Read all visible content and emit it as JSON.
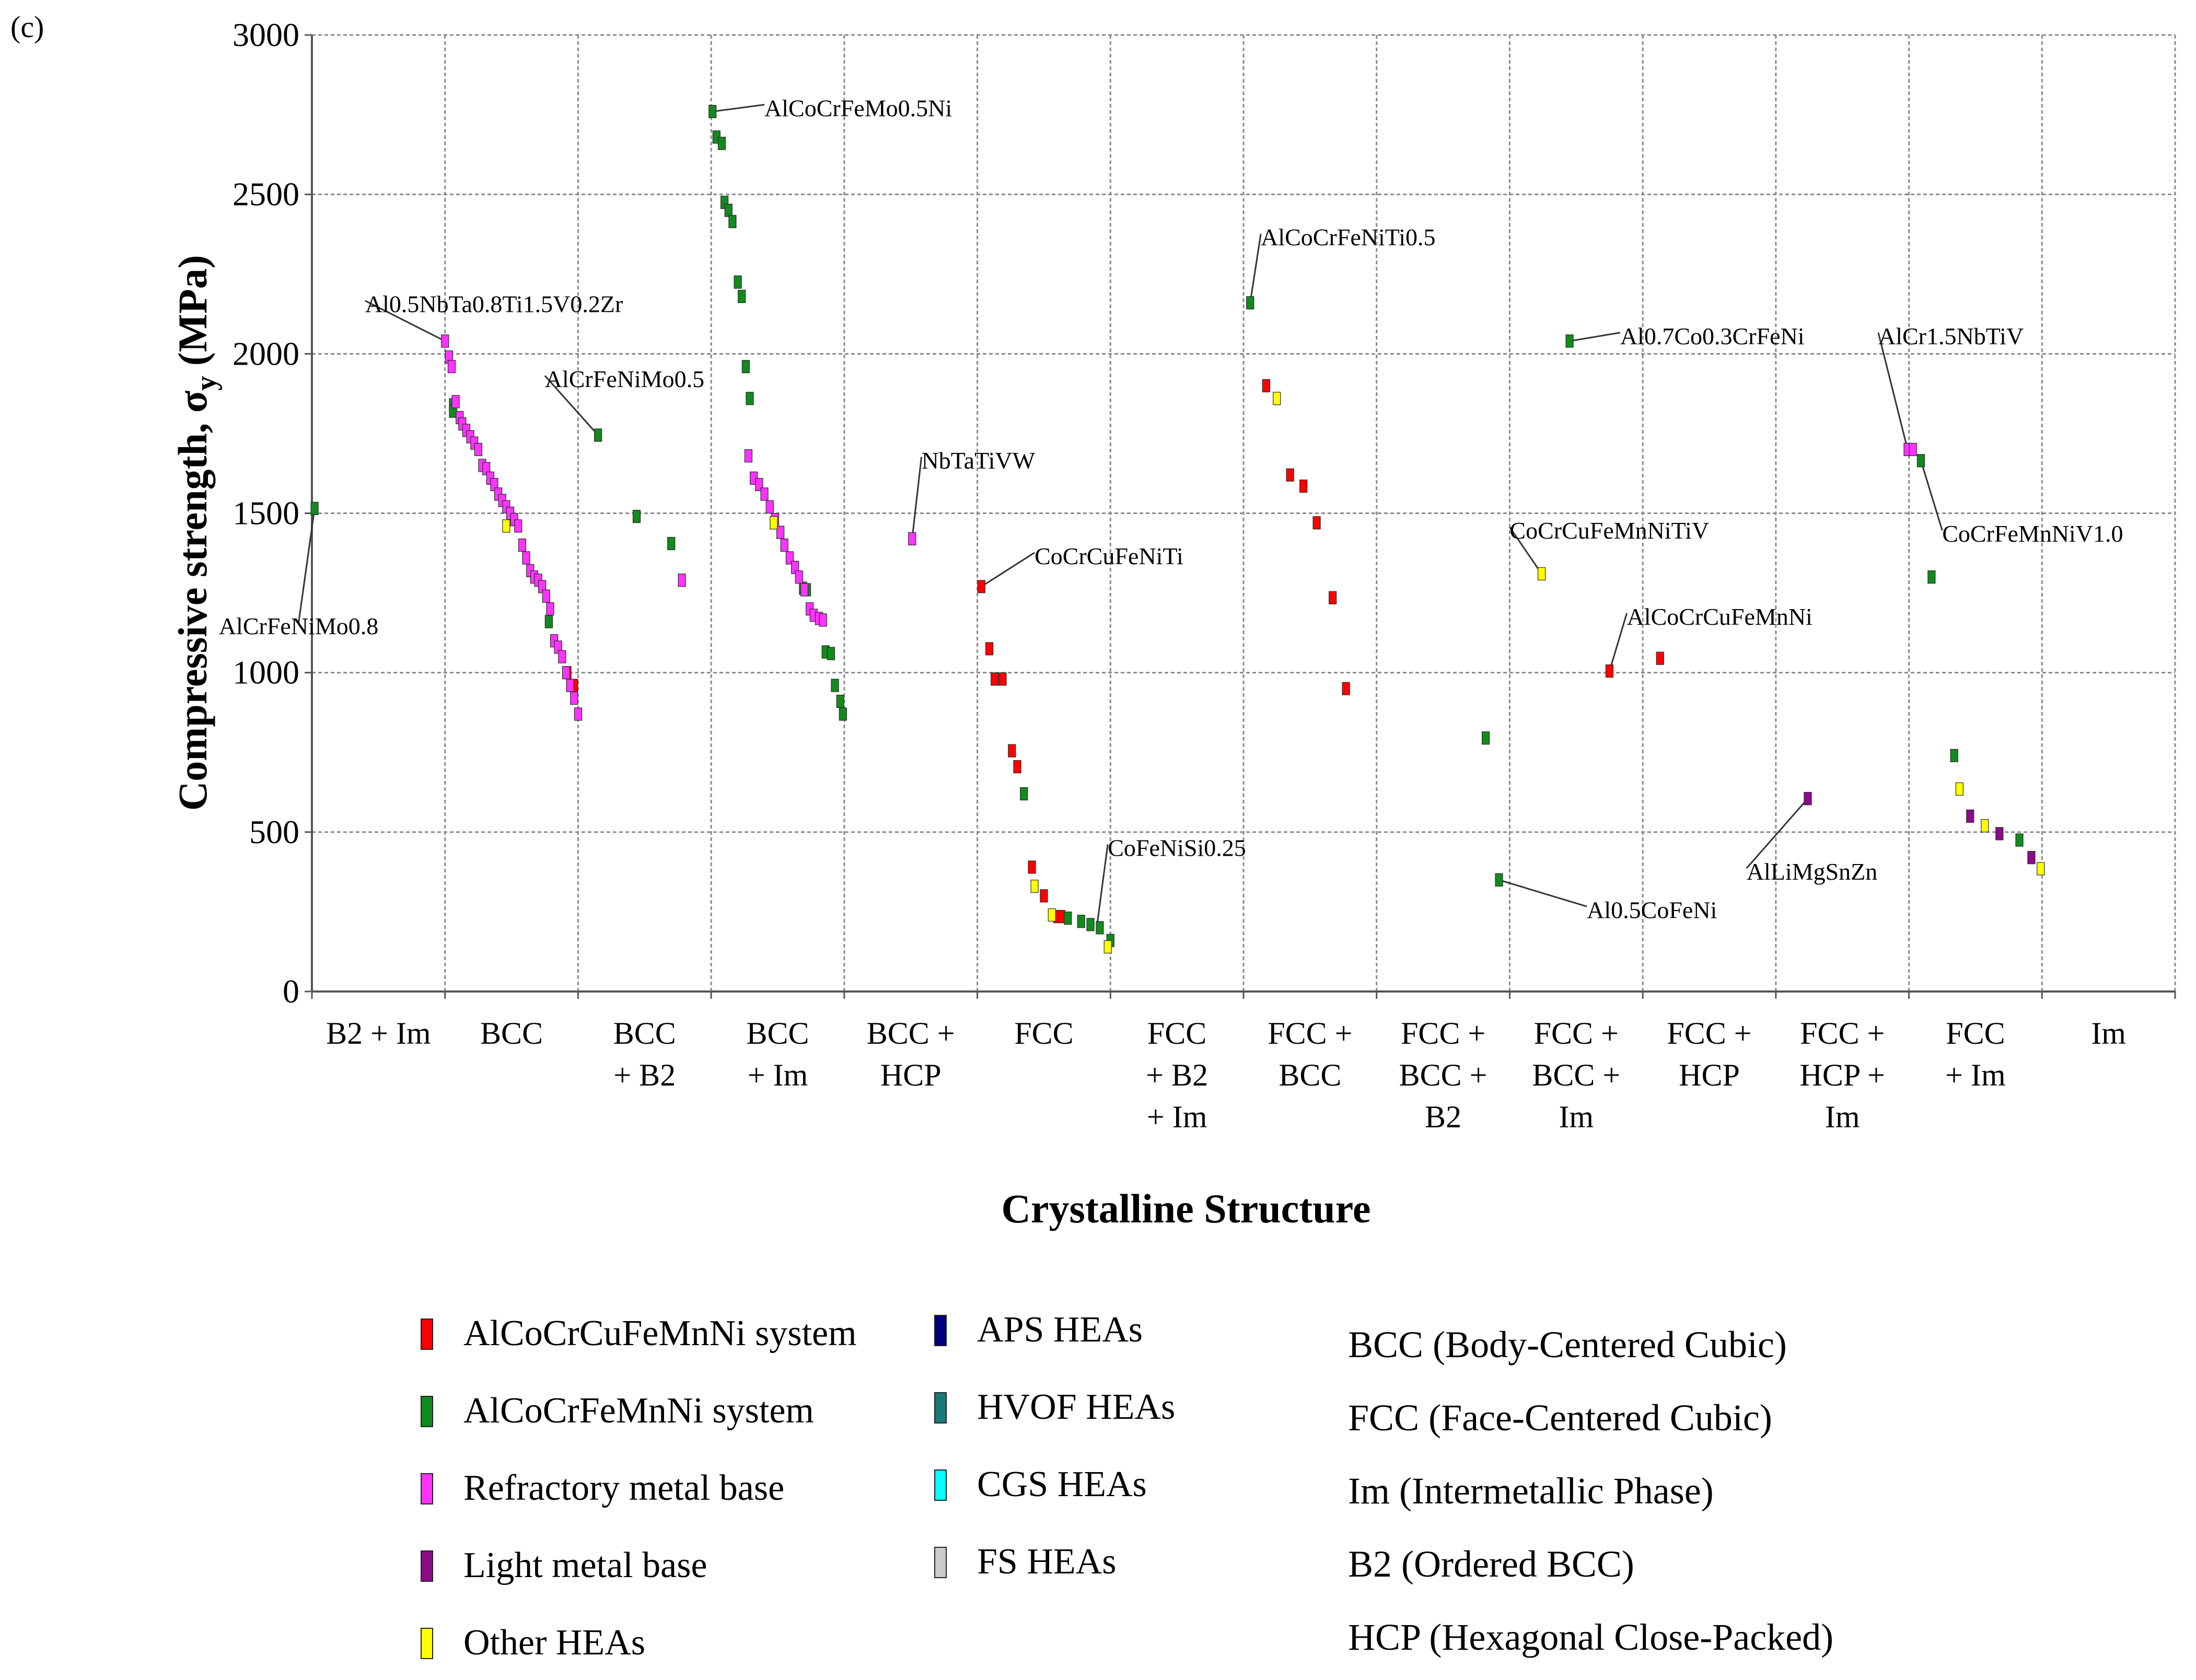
{
  "panel_label": "(c)",
  "colors": {
    "AlCoCrCuFeMnNi": "#ff0000",
    "AlCoCrFeMnNi": "#138a1e",
    "Refractory": "#ff33ff",
    "Light": "#8b0a8b",
    "Other": "#ffff00",
    "APS": "#00007f",
    "HVOF": "#1a7a7a",
    "CGS": "#00ffff",
    "FS": "#cccccc"
  },
  "chart_data": {
    "type": "scatter",
    "title": "",
    "xlabel": "Crystalline Structure",
    "ylabel": "Compressive strength, σy (MPa)",
    "ylabel_main": "Compressive strength, σ",
    "ylabel_sub": "y",
    "ylabel_unit": " (MPa)",
    "ylim": [
      0,
      3000
    ],
    "yticks": [
      0,
      500,
      1000,
      1500,
      2000,
      2500,
      3000
    ],
    "ytick_labels": [
      "0",
      "500",
      "1000",
      "1500",
      "2000",
      "2500",
      "3000"
    ],
    "grid": true,
    "categories": [
      {
        "lines": [
          "B2 + Im"
        ]
      },
      {
        "lines": [
          "BCC"
        ]
      },
      {
        "lines": [
          "BCC",
          "+ B2"
        ]
      },
      {
        "lines": [
          "BCC",
          "+ Im"
        ]
      },
      {
        "lines": [
          "BCC +",
          "HCP"
        ]
      },
      {
        "lines": [
          "FCC"
        ]
      },
      {
        "lines": [
          "FCC",
          "+ B2",
          "+ Im"
        ]
      },
      {
        "lines": [
          "FCC +",
          "BCC"
        ]
      },
      {
        "lines": [
          "FCC +",
          "BCC +",
          "B2"
        ]
      },
      {
        "lines": [
          "FCC +",
          "BCC +",
          "Im"
        ]
      },
      {
        "lines": [
          "FCC +",
          "HCP"
        ]
      },
      {
        "lines": [
          "FCC +",
          "HCP +",
          "Im"
        ]
      },
      {
        "lines": [
          "FCC",
          "+ Im"
        ]
      },
      {
        "lines": [
          "Im"
        ]
      }
    ],
    "series": [
      {
        "name": "AlCoCrCuFeMnNi system",
        "color_key": "AlCoCrCuFeMnNi",
        "points": [
          [
            1.92,
            1000
          ],
          [
            1.97,
            960
          ],
          [
            5.03,
            1270
          ],
          [
            5.09,
            1075
          ],
          [
            5.13,
            980
          ],
          [
            5.19,
            980
          ],
          [
            5.26,
            755
          ],
          [
            5.3,
            705
          ],
          [
            5.41,
            390
          ],
          [
            5.5,
            300
          ],
          [
            5.6,
            235
          ],
          [
            5.63,
            235
          ],
          [
            7.17,
            1900
          ],
          [
            7.35,
            1620
          ],
          [
            7.45,
            1585
          ],
          [
            7.55,
            1470
          ],
          [
            7.67,
            1235
          ],
          [
            7.77,
            950
          ],
          [
            9.75,
            1005
          ],
          [
            10.13,
            1045
          ]
        ]
      },
      {
        "name": "AlCoCrFeMnNi system",
        "color_key": "AlCoCrFeMnNi",
        "points": [
          [
            0.02,
            1515
          ],
          [
            1.06,
            1840
          ],
          [
            1.06,
            1820
          ],
          [
            1.78,
            1160
          ],
          [
            2.15,
            1745
          ],
          [
            2.44,
            1490
          ],
          [
            2.7,
            1405
          ],
          [
            3.01,
            2760
          ],
          [
            3.04,
            2680
          ],
          [
            3.08,
            2660
          ],
          [
            3.1,
            2475
          ],
          [
            3.13,
            2450
          ],
          [
            3.16,
            2415
          ],
          [
            3.2,
            2225
          ],
          [
            3.23,
            2180
          ],
          [
            3.26,
            1960
          ],
          [
            3.29,
            1860
          ],
          [
            3.69,
            1265
          ],
          [
            3.72,
            1260
          ],
          [
            3.86,
            1065
          ],
          [
            3.9,
            1060
          ],
          [
            3.93,
            960
          ],
          [
            3.97,
            910
          ],
          [
            3.99,
            870
          ],
          [
            5.35,
            620
          ],
          [
            5.68,
            230
          ],
          [
            5.78,
            220
          ],
          [
            5.85,
            210
          ],
          [
            5.92,
            200
          ],
          [
            6.0,
            160
          ],
          [
            7.05,
            2160
          ],
          [
            8.82,
            795
          ],
          [
            8.92,
            350
          ],
          [
            9.45,
            2040
          ],
          [
            12.09,
            1665
          ],
          [
            12.17,
            1300
          ],
          [
            12.34,
            740
          ],
          [
            12.83,
            475
          ]
        ]
      },
      {
        "name": "Refractory metal base",
        "color_key": "Refractory",
        "points": [
          [
            1.0,
            2040
          ],
          [
            1.03,
            1990
          ],
          [
            1.05,
            1960
          ],
          [
            1.08,
            1850
          ],
          [
            1.11,
            1800
          ],
          [
            1.13,
            1780
          ],
          [
            1.16,
            1760
          ],
          [
            1.19,
            1740
          ],
          [
            1.22,
            1720
          ],
          [
            1.25,
            1700
          ],
          [
            1.28,
            1650
          ],
          [
            1.31,
            1640
          ],
          [
            1.34,
            1610
          ],
          [
            1.37,
            1590
          ],
          [
            1.4,
            1560
          ],
          [
            1.43,
            1540
          ],
          [
            1.46,
            1520
          ],
          [
            1.49,
            1500
          ],
          [
            1.52,
            1480
          ],
          [
            1.55,
            1460
          ],
          [
            1.58,
            1400
          ],
          [
            1.61,
            1360
          ],
          [
            1.64,
            1320
          ],
          [
            1.67,
            1300
          ],
          [
            1.7,
            1290
          ],
          [
            1.73,
            1270
          ],
          [
            1.76,
            1240
          ],
          [
            1.79,
            1200
          ],
          [
            1.82,
            1100
          ],
          [
            1.85,
            1080
          ],
          [
            1.88,
            1050
          ],
          [
            1.91,
            1000
          ],
          [
            1.94,
            960
          ],
          [
            1.97,
            920
          ],
          [
            2.0,
            870
          ],
          [
            2.78,
            1290
          ],
          [
            3.28,
            1680
          ],
          [
            3.32,
            1610
          ],
          [
            3.36,
            1590
          ],
          [
            3.4,
            1560
          ],
          [
            3.44,
            1520
          ],
          [
            3.48,
            1480
          ],
          [
            3.52,
            1440
          ],
          [
            3.55,
            1400
          ],
          [
            3.59,
            1360
          ],
          [
            3.63,
            1330
          ],
          [
            3.66,
            1300
          ],
          [
            3.7,
            1260
          ],
          [
            3.74,
            1200
          ],
          [
            3.77,
            1180
          ],
          [
            3.81,
            1170
          ],
          [
            3.84,
            1165
          ],
          [
            4.51,
            1420
          ],
          [
            11.99,
            1700
          ],
          [
            12.03,
            1700
          ]
        ]
      },
      {
        "name": "Light metal base",
        "color_key": "Light",
        "points": [
          [
            11.24,
            605
          ],
          [
            12.46,
            550
          ],
          [
            12.68,
            495
          ],
          [
            12.92,
            420
          ]
        ]
      },
      {
        "name": "Other HEAs",
        "color_key": "Other",
        "points": [
          [
            1.46,
            1460
          ],
          [
            3.47,
            1470
          ],
          [
            5.43,
            330
          ],
          [
            5.56,
            240
          ],
          [
            5.98,
            140
          ],
          [
            7.25,
            1860
          ],
          [
            9.24,
            1310
          ],
          [
            12.38,
            635
          ],
          [
            12.57,
            520
          ],
          [
            12.99,
            385
          ]
        ]
      }
    ],
    "annotations": [
      {
        "text": "AlCrFeNiMo0.8",
        "x": 0.02,
        "y": 1515,
        "tx": -0.1,
        "ty": 1145,
        "anchor": "middle"
      },
      {
        "text": "Al0.5NbTa0.8Ti1.5V0.2Zr",
        "x": 1.0,
        "y": 2040,
        "tx": 0.4,
        "ty": 2155,
        "anchor": "start"
      },
      {
        "text": "AlCrFeNiMo0.5",
        "x": 2.15,
        "y": 1745,
        "tx": 1.75,
        "ty": 1920,
        "anchor": "start"
      },
      {
        "text": "AlCoCrFeMo0.5Ni",
        "x": 3.01,
        "y": 2760,
        "tx": 3.4,
        "ty": 2770,
        "anchor": "start"
      },
      {
        "text": "NbTaTiVW",
        "x": 4.51,
        "y": 1420,
        "tx": 4.58,
        "ty": 1665,
        "anchor": "start"
      },
      {
        "text": "CoCrCuFeNiTi",
        "x": 5.03,
        "y": 1270,
        "tx": 5.43,
        "ty": 1365,
        "anchor": "start"
      },
      {
        "text": "CoFeNiSi0.25",
        "x": 5.9,
        "y": 210,
        "tx": 5.98,
        "ty": 450,
        "anchor": "start"
      },
      {
        "text": "AlCoCrFeNiTi0.5",
        "x": 7.05,
        "y": 2160,
        "tx": 7.13,
        "ty": 2365,
        "anchor": "start"
      },
      {
        "text": "Al0.7Co0.3CrFeNi",
        "x": 9.45,
        "y": 2040,
        "tx": 9.83,
        "ty": 2055,
        "anchor": "start"
      },
      {
        "text": "CoCrCuFeMnNiTiV",
        "x": 9.24,
        "y": 1310,
        "tx": 9.0,
        "ty": 1445,
        "anchor": "start"
      },
      {
        "text": "AlCoCrCuFeMnNi",
        "x": 9.75,
        "y": 1005,
        "tx": 9.88,
        "ty": 1175,
        "anchor": "start"
      },
      {
        "text": "Al0.5CoFeNi",
        "x": 8.92,
        "y": 350,
        "tx": 9.58,
        "ty": 255,
        "anchor": "start"
      },
      {
        "text": "AlLiMgSnZn",
        "x": 11.24,
        "y": 605,
        "tx": 10.78,
        "ty": 375,
        "anchor": "start"
      },
      {
        "text": "AlCr1.5NbTiV",
        "x": 11.99,
        "y": 1700,
        "tx": 11.77,
        "ty": 2055,
        "anchor": "start"
      },
      {
        "text": "CoCrFeMnNiV1.0",
        "x": 12.09,
        "y": 1665,
        "tx": 12.25,
        "ty": 1435,
        "anchor": "start"
      }
    ]
  },
  "legend": {
    "column1": [
      {
        "label": "AlCoCrCuFeMnNi system",
        "color_key": "AlCoCrCuFeMnNi"
      },
      {
        "label": "AlCoCrFeMnNi system",
        "color_key": "AlCoCrFeMnNi"
      },
      {
        "label": "Refractory metal base",
        "color_key": "Refractory"
      },
      {
        "label": "Light metal base",
        "color_key": "Light"
      },
      {
        "label": "Other HEAs",
        "color_key": "Other"
      }
    ],
    "column2": [
      {
        "label": "APS HEAs",
        "color_key": "APS"
      },
      {
        "label": "HVOF HEAs",
        "color_key": "HVOF"
      },
      {
        "label": "CGS HEAs",
        "color_key": "CGS"
      },
      {
        "label": "FS HEAs",
        "color_key": "FS"
      }
    ],
    "abbreviations": [
      "BCC (Body-Centered Cubic)",
      "FCC (Face-Centered Cubic)",
      "Im (Intermetallic Phase)",
      "B2 (Ordered BCC)",
      "HCP (Hexagonal Close-Packed)"
    ]
  }
}
